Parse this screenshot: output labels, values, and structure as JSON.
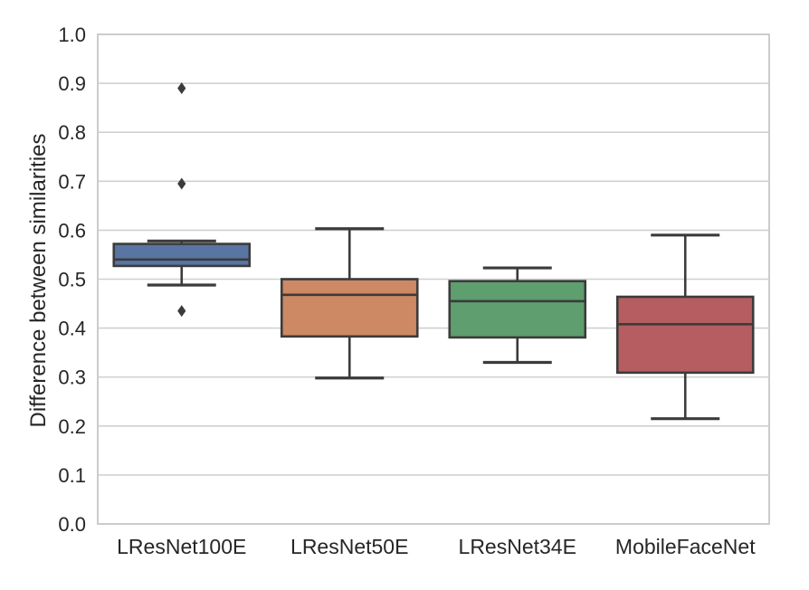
{
  "chart_data": {
    "type": "box",
    "title": "",
    "xlabel": "",
    "ylabel": "Difference between similarities",
    "ylim": [
      0.0,
      1.0
    ],
    "yticks": [
      0.0,
      0.1,
      0.2,
      0.3,
      0.4,
      0.5,
      0.6,
      0.7,
      0.8,
      0.9,
      1.0
    ],
    "grid": "horizontal",
    "legend": "none",
    "categories": [
      "LResNet100E",
      "LResNet50E",
      "LResNet34E",
      "MobileFaceNet"
    ],
    "series": [
      {
        "category": "LResNet100E",
        "whisker_low": 0.488,
        "q1": 0.527,
        "median": 0.54,
        "q3": 0.572,
        "whisker_high": 0.578,
        "outliers": [
          0.435,
          0.695,
          0.89
        ],
        "color": "#5875A4"
      },
      {
        "category": "LResNet50E",
        "whisker_low": 0.298,
        "q1": 0.383,
        "median": 0.468,
        "q3": 0.5,
        "whisker_high": 0.603,
        "outliers": [],
        "color": "#CC8963"
      },
      {
        "category": "LResNet34E",
        "whisker_low": 0.33,
        "q1": 0.381,
        "median": 0.455,
        "q3": 0.496,
        "whisker_high": 0.523,
        "outliers": [],
        "color": "#5F9E6E"
      },
      {
        "category": "MobileFaceNet",
        "whisker_low": 0.215,
        "q1": 0.309,
        "median": 0.408,
        "q3": 0.464,
        "whisker_high": 0.59,
        "outliers": [],
        "color": "#B55D60"
      }
    ],
    "style": {
      "background_color": "#ffffff",
      "grid_color": "#d0d0d0",
      "spine_color": "#cccccc",
      "edge_color": "#3B3B3B",
      "text_color": "#262626",
      "outlier_color": "#3B3B3B"
    }
  }
}
